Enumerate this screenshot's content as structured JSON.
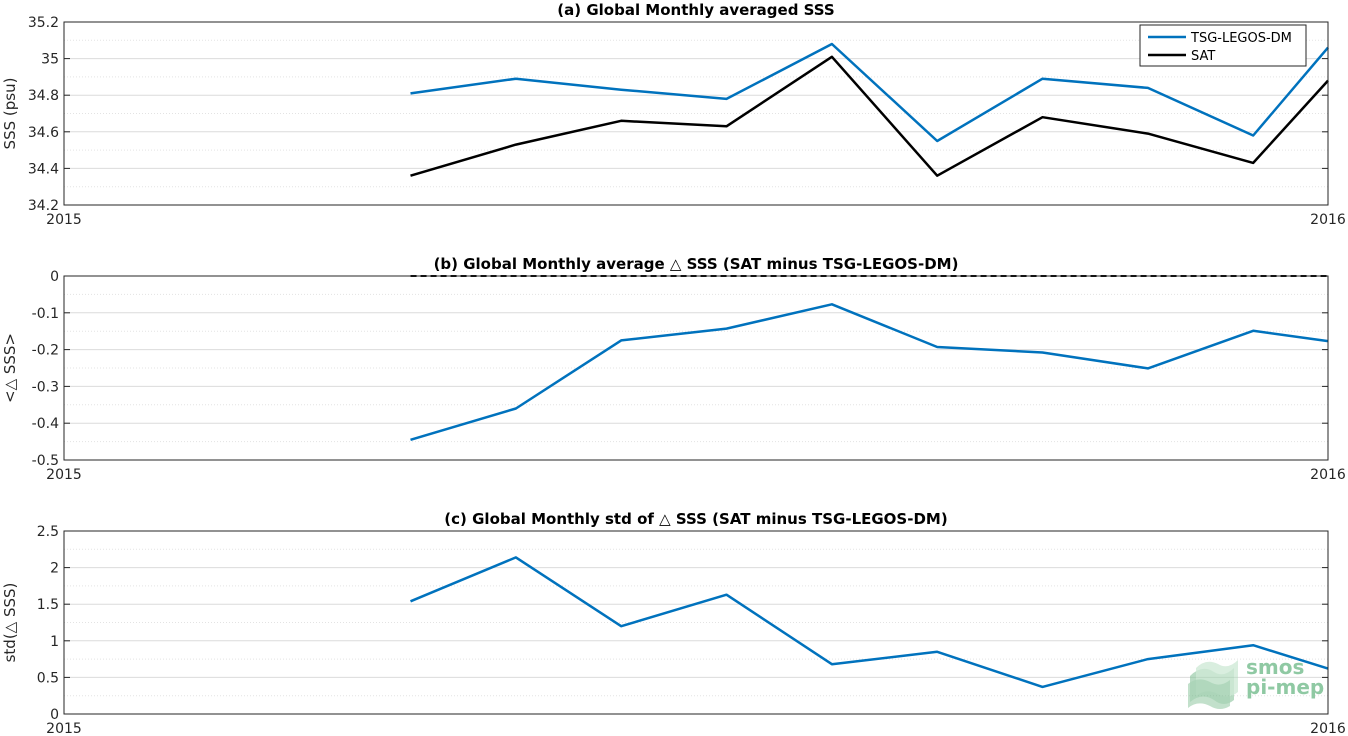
{
  "chart_data": [
    {
      "type": "line",
      "title": "(a) Global Monthly averaged SSS",
      "xlabel": "",
      "ylabel": "SSS (psu)",
      "xlim": [
        0,
        12
      ],
      "x_tick_labels": [
        "2015",
        "2016"
      ],
      "ylim": [
        34.2,
        35.2
      ],
      "yticks": [
        34.2,
        34.4,
        34.6,
        34.8,
        35,
        35.2
      ],
      "ytick_labels": [
        "34.2",
        "34.4",
        "34.6",
        "34.8",
        "35",
        "35.2"
      ],
      "grid": true,
      "legend_position": "top-right",
      "x": [
        3.29,
        4.29,
        5.29,
        6.29,
        7.29,
        8.29,
        9.29,
        10.29,
        11.29,
        12
      ],
      "series": [
        {
          "name": "TSG-LEGOS-DM",
          "color": "#0072bd",
          "values": [
            34.81,
            34.89,
            34.83,
            34.78,
            35.08,
            34.55,
            34.89,
            34.84,
            34.58,
            35.06
          ]
        },
        {
          "name": "SAT",
          "color": "#000000",
          "values": [
            34.36,
            34.53,
            34.66,
            34.63,
            35.01,
            34.36,
            34.68,
            34.59,
            34.43,
            34.88
          ]
        }
      ]
    },
    {
      "type": "line",
      "title": "(b) Global Monthly average △ SSS (SAT minus TSG-LEGOS-DM)",
      "xlabel": "",
      "ylabel": "<△ SSS>",
      "xlim": [
        0,
        12
      ],
      "x_tick_labels": [
        "2015",
        "2016"
      ],
      "ylim": [
        -0.5,
        0
      ],
      "yticks": [
        -0.5,
        -0.4,
        -0.3,
        -0.2,
        -0.1,
        0
      ],
      "ytick_labels": [
        "-0.5",
        "-0.4",
        "-0.3",
        "-0.2",
        "-0.1",
        "0"
      ],
      "grid": true,
      "reference_line": {
        "y": 0,
        "style": "dashed",
        "color": "#000000",
        "x_start": 3.29
      },
      "x": [
        3.29,
        4.29,
        5.29,
        6.29,
        7.29,
        8.29,
        9.29,
        10.29,
        11.29,
        12
      ],
      "series": [
        {
          "color": "#0072bd",
          "values": [
            -0.445,
            -0.36,
            -0.175,
            -0.143,
            -0.077,
            -0.193,
            -0.208,
            -0.251,
            -0.149,
            -0.177
          ]
        }
      ]
    },
    {
      "type": "line",
      "title": "(c) Global Monthly std of △ SSS (SAT minus TSG-LEGOS-DM)",
      "xlabel": "",
      "ylabel": "std(△ SSS)",
      "xlim": [
        0,
        12
      ],
      "x_tick_labels": [
        "2015",
        "2016"
      ],
      "ylim": [
        0,
        2.5
      ],
      "yticks": [
        0,
        0.5,
        1,
        1.5,
        2,
        2.5
      ],
      "ytick_labels": [
        "0",
        "0.5",
        "1",
        "1.5",
        "2",
        "2.5"
      ],
      "grid": true,
      "x": [
        3.29,
        4.29,
        5.29,
        6.29,
        7.29,
        8.29,
        9.29,
        10.29,
        11.29,
        12
      ],
      "series": [
        {
          "color": "#0072bd",
          "values": [
            1.54,
            2.14,
            1.2,
            1.63,
            0.68,
            0.85,
            0.37,
            0.75,
            0.94,
            0.62
          ]
        }
      ]
    }
  ],
  "logo": {
    "line1": "smos",
    "line2": "pi-mep",
    "color": "#8fc9a3"
  }
}
